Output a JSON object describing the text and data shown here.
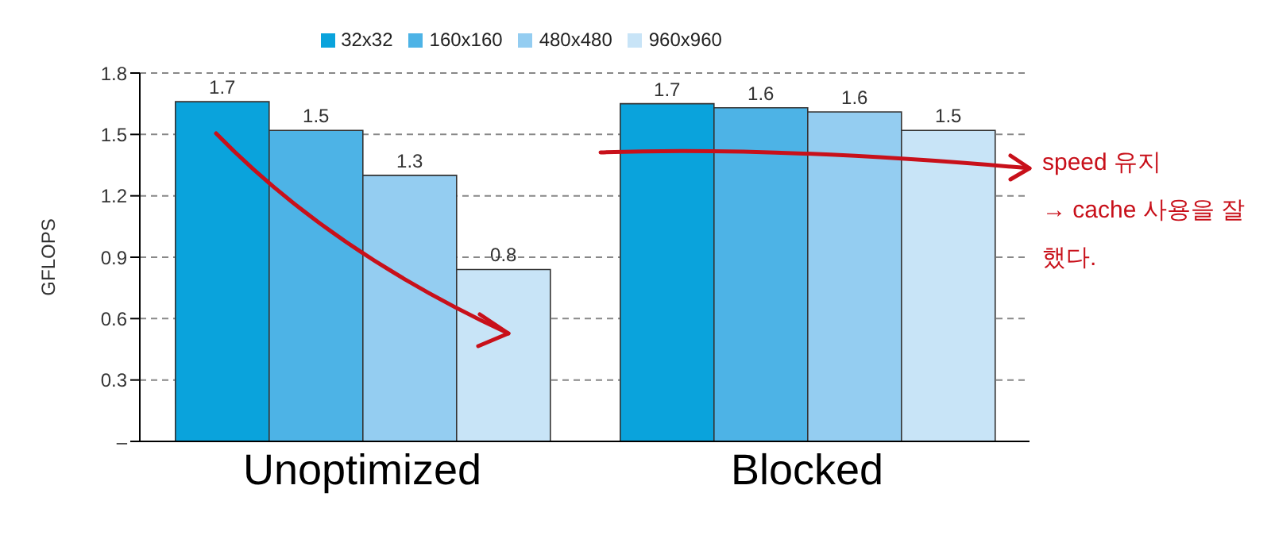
{
  "chart_data": {
    "type": "bar",
    "ylabel": "GFLOPS",
    "categories": [
      "Unoptimized",
      "Blocked"
    ],
    "series": [
      {
        "name": "32x32",
        "color": "#0aa3dc",
        "values": [
          1.66,
          1.65
        ],
        "value_labels": [
          "1.7",
          "1.7"
        ]
      },
      {
        "name": "160x160",
        "color": "#4db3e6",
        "values": [
          1.52,
          1.63
        ],
        "value_labels": [
          "1.5",
          "1.6"
        ]
      },
      {
        "name": "480x480",
        "color": "#94cdf1",
        "values": [
          1.3,
          1.61
        ],
        "value_labels": [
          "1.3",
          "1.6"
        ]
      },
      {
        "name": "960x960",
        "color": "#c8e4f7",
        "values": [
          0.84,
          1.52
        ],
        "value_labels": [
          "0.8",
          "1.5"
        ]
      }
    ],
    "ylim": [
      0,
      1.8
    ],
    "yticks": [
      {
        "value": 0,
        "label": "–"
      },
      0.3,
      0.6,
      0.9,
      1.2,
      1.5,
      1.8
    ],
    "grid": "y",
    "legend": "top",
    "annotations": [
      "speed 유지",
      "→ cache 사용을 잘했다."
    ]
  }
}
